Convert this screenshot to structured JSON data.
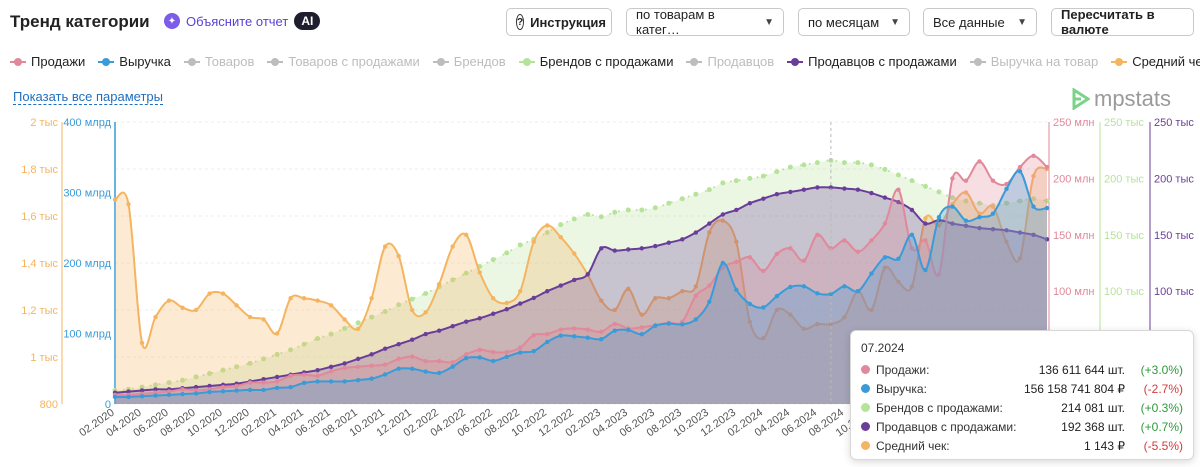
{
  "header": {
    "title": "Тренд категории",
    "explain_label": "Объясните отчет",
    "ai_badge": "AI",
    "help_button": "Инструкция",
    "group_select": "по товарам в катег…",
    "period_select": "по месяцам",
    "data_select": "Все данные",
    "recalc_button": "Пересчитать в валюте"
  },
  "legend": [
    {
      "label": "Продажи",
      "color": "#e0899a",
      "active": true
    },
    {
      "label": "Выручка",
      "color": "#3a9bd9",
      "active": true
    },
    {
      "label": "Товаров",
      "color": "#bdbdbd",
      "active": false
    },
    {
      "label": "Товаров с продажами",
      "color": "#bdbdbd",
      "active": false
    },
    {
      "label": "Брендов",
      "color": "#bdbdbd",
      "active": false
    },
    {
      "label": "Брендов с продажами",
      "color": "#b6e39a",
      "active": true
    },
    {
      "label": "Продавцов",
      "color": "#bdbdbd",
      "active": false
    },
    {
      "label": "Продавцов с продажами",
      "color": "#6a3d9a",
      "active": true
    },
    {
      "label": "Выручка на товар",
      "color": "#bdbdbd",
      "active": false
    },
    {
      "label": "Средний чек",
      "color": "#f5b460",
      "active": true
    }
  ],
  "show_all_link": "Показать все параметры",
  "logo_text": "mpstats",
  "tooltip": {
    "date": "07.2024",
    "rows": [
      {
        "name": "Продажи:",
        "value": "136 611 644 шт.",
        "delta": "(+3.0%)",
        "color": "#e0899a",
        "delta_color": "#2e9a3a"
      },
      {
        "name": "Выручка:",
        "value": "156 158 741 804 ₽",
        "delta": "(-2.7%)",
        "color": "#3a9bd9",
        "delta_color": "#d23c3c"
      },
      {
        "name": "Брендов с продажами:",
        "value": "214 081 шт.",
        "delta": "(+0.3%)",
        "color": "#b6e39a",
        "delta_color": "#2e9a3a"
      },
      {
        "name": "Продавцов с продажами:",
        "value": "192 368 шт.",
        "delta": "(+0.7%)",
        "color": "#6a3d9a",
        "delta_color": "#2e9a3a"
      },
      {
        "name": "Средний чек:",
        "value": "1 143 ₽",
        "delta": "(-5.5%)",
        "color": "#f5b460",
        "delta_color": "#d23c3c"
      }
    ]
  },
  "chart_data": {
    "type": "area",
    "x": [
      "02.2020",
      "03.2020",
      "04.2020",
      "05.2020",
      "06.2020",
      "07.2020",
      "08.2020",
      "09.2020",
      "10.2020",
      "11.2020",
      "12.2020",
      "01.2021",
      "02.2021",
      "03.2021",
      "04.2021",
      "05.2021",
      "06.2021",
      "07.2021",
      "08.2021",
      "09.2021",
      "10.2021",
      "11.2021",
      "12.2021",
      "01.2022",
      "02.2022",
      "03.2022",
      "04.2022",
      "05.2022",
      "06.2022",
      "07.2022",
      "08.2022",
      "09.2022",
      "10.2022",
      "11.2022",
      "12.2022",
      "01.2023",
      "02.2023",
      "03.2023",
      "04.2023",
      "05.2023",
      "06.2023",
      "07.2023",
      "08.2023",
      "09.2023",
      "10.2023",
      "11.2023",
      "12.2023",
      "01.2024",
      "02.2024",
      "03.2024",
      "04.2024",
      "05.2024",
      "06.2024",
      "07.2024",
      "08.2024",
      "09.2024",
      "10.2024",
      "11.2024",
      "12.2024",
      "01.2025",
      "02.2025",
      "03.2025",
      "04.2025",
      "05.2025",
      "06.2025",
      "07.2025",
      "08.2025",
      "09.2025",
      "10.2025",
      "11.2025"
    ],
    "x_tick_labels": [
      "02.2020",
      "04.2020",
      "06.2020",
      "08.2020",
      "10.2020",
      "12.2020",
      "02.2021",
      "04.2021",
      "06.2021",
      "08.2021",
      "10.2021",
      "12.2021",
      "02.2022",
      "04.2022",
      "06.2022",
      "08.2022",
      "10.2022",
      "12.2022",
      "02.2023",
      "04.2023",
      "06.2023",
      "08.2023",
      "10.2023",
      "12.2023",
      "02.2024",
      "04.2024",
      "06.2024",
      "08.2024",
      "10.2024"
    ],
    "axes": [
      {
        "id": "avg_check",
        "ticks": [
          "800",
          "1 тыс",
          "1,2 тыс",
          "1,4 тыс",
          "1,6 тыс",
          "1,8 тыс",
          "2 тыс"
        ],
        "range": [
          800,
          2000
        ],
        "color": "#f5b460"
      },
      {
        "id": "revenue",
        "ticks": [
          "0",
          "100 млрд",
          "200 млрд",
          "300 млрд",
          "400 млрд"
        ],
        "range": [
          0,
          400
        ],
        "color": "#3a9bd9"
      },
      {
        "id": "sales",
        "ticks": [
          "100 млн",
          "150 млн",
          "200 млн",
          "250 млн"
        ],
        "range": [
          0,
          250
        ],
        "color": "#e0899a"
      },
      {
        "id": "brands",
        "ticks": [
          "100 тыс",
          "150 тыс",
          "200 тыс",
          "250 тыс"
        ],
        "range": [
          0,
          250
        ],
        "color": "#b6e39a"
      },
      {
        "id": "sellers",
        "ticks": [
          "100 тыс",
          "150 тыс",
          "200 тыс",
          "250 тыс"
        ],
        "range": [
          0,
          250
        ],
        "color": "#6a3d9a"
      }
    ],
    "series": [
      {
        "name": "Средний чек",
        "axis": "avg_check",
        "color": "#f5b460",
        "values": [
          1670,
          1650,
          1060,
          1170,
          1240,
          1210,
          1200,
          1270,
          1270,
          1220,
          1170,
          1160,
          1100,
          1250,
          1250,
          1240,
          1220,
          1160,
          1120,
          1250,
          1470,
          1430,
          1200,
          1190,
          1310,
          1470,
          1520,
          1360,
          1250,
          1230,
          1280,
          1490,
          1560,
          1510,
          1440,
          1350,
          1240,
          1200,
          1290,
          1180,
          1250,
          1250,
          1280,
          1300,
          1530,
          1580,
          1490,
          1150,
          1080,
          1200,
          1180,
          1120,
          1140,
          1140,
          1170,
          1280,
          1200,
          1380,
          1320,
          1300,
          1590,
          1560,
          1650,
          1700,
          1610,
          1640,
          1490,
          1420,
          1770,
          1800
        ]
      },
      {
        "name": "Выручка",
        "axis": "revenue",
        "color": "#3a9bd9",
        "values": [
          10,
          10,
          11,
          12,
          13,
          14,
          15,
          17,
          18,
          19,
          20,
          20,
          23,
          24,
          30,
          32,
          32,
          32,
          34,
          36,
          42,
          50,
          50,
          46,
          44,
          53,
          65,
          66,
          61,
          67,
          73,
          75,
          88,
          97,
          96,
          94,
          92,
          104,
          105,
          99,
          111,
          114,
          113,
          120,
          145,
          200,
          162,
          142,
          137,
          153,
          166,
          167,
          157,
          156,
          167,
          160,
          185,
          208,
          206,
          240,
          190,
          265,
          280,
          260,
          265,
          270,
          305,
          330,
          280,
          278
        ]
      },
      {
        "name": "Продажи",
        "axis": "sales",
        "color": "#e0899a",
        "values": [
          8,
          8,
          9,
          10,
          11,
          13,
          12,
          13,
          15,
          16,
          19,
          19,
          20,
          25,
          26,
          25,
          29,
          32,
          33,
          34,
          35,
          40,
          42,
          38,
          38,
          37,
          44,
          48,
          46,
          46,
          50,
          61,
          62,
          66,
          67,
          66,
          64,
          71,
          67,
          68,
          70,
          72,
          73,
          96,
          105,
          121,
          126,
          130,
          118,
          133,
          138,
          127,
          150,
          138,
          145,
          135,
          145,
          160,
          190,
          138,
          145,
          115,
          200,
          198,
          215,
          198,
          195,
          210,
          220,
          210
        ]
      },
      {
        "name": "Брендов с продажами",
        "axis": "brands",
        "color": "#b6e39a",
        "values": [
          12,
          13,
          15,
          17,
          19,
          21,
          24,
          27,
          30,
          33,
          36,
          40,
          44,
          48,
          53,
          58,
          62,
          67,
          72,
          77,
          82,
          88,
          93,
          98,
          104,
          110,
          116,
          122,
          128,
          134,
          141,
          146,
          152,
          159,
          164,
          168,
          166,
          170,
          172,
          172,
          174,
          178,
          182,
          186,
          190,
          196,
          198,
          200,
          202,
          206,
          210,
          212,
          214,
          216,
          214,
          214,
          212,
          208,
          203,
          198,
          193,
          188,
          183,
          180,
          178,
          176,
          178,
          180,
          182,
          180
        ]
      },
      {
        "name": "Продавцов с продажами",
        "axis": "sellers",
        "color": "#6a3d9a",
        "values": [
          10,
          11,
          12,
          13,
          13,
          14,
          15,
          16,
          17,
          18,
          20,
          22,
          24,
          26,
          28,
          30,
          33,
          36,
          40,
          44,
          49,
          53,
          57,
          62,
          65,
          69,
          73,
          76,
          80,
          84,
          89,
          94,
          100,
          105,
          110,
          115,
          138,
          136,
          137,
          138,
          140,
          143,
          146,
          152,
          160,
          168,
          172,
          178,
          182,
          186,
          188,
          190,
          192,
          192,
          191,
          190,
          187,
          183,
          179,
          172,
          160,
          163,
          160,
          158,
          156,
          155,
          154,
          152,
          150,
          146
        ]
      }
    ]
  }
}
